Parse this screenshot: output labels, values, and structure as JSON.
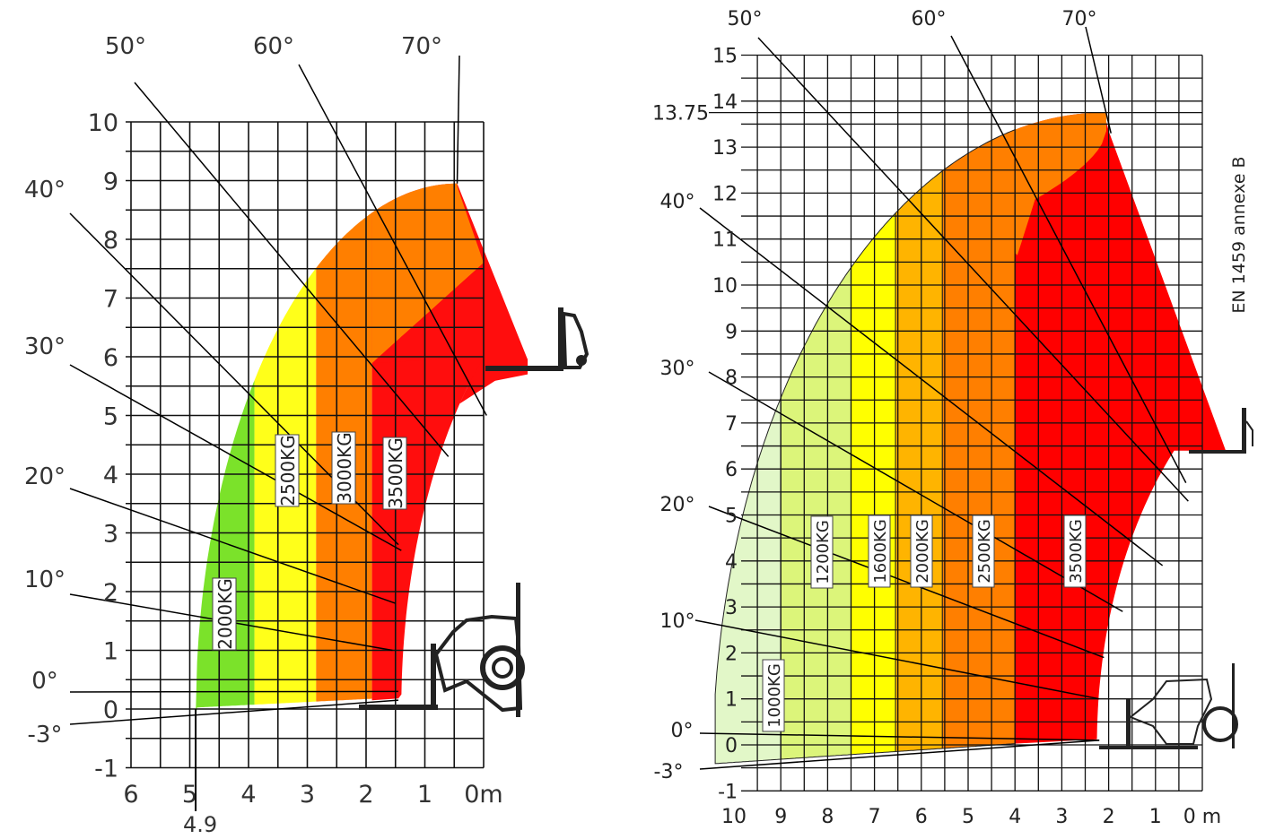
{
  "chart_data": [
    {
      "type": "area",
      "title": "",
      "xlabel": "",
      "ylabel": "",
      "x_unit_label": "0m",
      "x_ticks": [
        "6",
        "5",
        "4",
        "3",
        "2",
        "1",
        "0m"
      ],
      "y_ticks": [
        "-1",
        "0",
        "1",
        "2",
        "3",
        "4",
        "5",
        "6",
        "7",
        "8",
        "9",
        "10"
      ],
      "xlim": [
        6,
        0
      ],
      "ylim": [
        -1,
        10
      ],
      "grid": true,
      "max_reach": 4.9,
      "max_reach_label": "4.9",
      "max_height": 8.95,
      "angles": [
        {
          "label": "70°",
          "deg": 70
        },
        {
          "label": "60°",
          "deg": 60
        },
        {
          "label": "50°",
          "deg": 50
        },
        {
          "label": "40°",
          "deg": 40
        },
        {
          "label": "30°",
          "deg": 30
        },
        {
          "label": "20°",
          "deg": 20
        },
        {
          "label": "10°",
          "deg": 10
        },
        {
          "label": "0°",
          "deg": 0
        },
        {
          "label": "-3°",
          "deg": -3
        }
      ],
      "series": [
        {
          "name": "2000KG",
          "from_x": 4.9,
          "to_x": 3.9,
          "color": "#7be22a"
        },
        {
          "name": "2500KG",
          "from_x": 3.9,
          "to_x": 2.85,
          "color": "#ffff1a"
        },
        {
          "name": "3000KG",
          "from_x": 2.85,
          "to_x": 1.9,
          "color": "#ff7f00"
        },
        {
          "name": "3500KG",
          "from_x": 1.9,
          "to_x": 0,
          "color": "#ff0d0d"
        }
      ],
      "zone_labels": [
        "2000KG",
        "2500KG",
        "3000KG",
        "3500KG"
      ]
    },
    {
      "type": "area",
      "title": "",
      "xlabel": "",
      "ylabel": "",
      "side_note": "EN 1459 annexe B",
      "x_ticks": [
        "10",
        "9",
        "8",
        "7",
        "6",
        "5",
        "4",
        "3",
        "2",
        "1",
        "0 m"
      ],
      "y_ticks": [
        "-1",
        "0",
        "1",
        "2",
        "3",
        "4",
        "5",
        "6",
        "7",
        "8",
        "9",
        "10",
        "11",
        "12",
        "13",
        "14",
        "15"
      ],
      "xlim": [
        10,
        0
      ],
      "ylim": [
        -1,
        15
      ],
      "grid": true,
      "max_height": 13.75,
      "max_height_label": "13.75",
      "max_reach": 10.4,
      "angles": [
        {
          "label": "70°",
          "deg": 70
        },
        {
          "label": "60°",
          "deg": 60
        },
        {
          "label": "50°",
          "deg": 50
        },
        {
          "label": "40°",
          "deg": 40
        },
        {
          "label": "30°",
          "deg": 30
        },
        {
          "label": "20°",
          "deg": 20
        },
        {
          "label": "10°",
          "deg": 10
        },
        {
          "label": "0°",
          "deg": 0
        },
        {
          "label": "-3°",
          "deg": -3
        }
      ],
      "series": [
        {
          "name": "1000KG",
          "from_x": 10.4,
          "to_x": 9.0,
          "color": "#e2f7c8"
        },
        {
          "name": "1200KG",
          "from_x": 9.0,
          "to_x": 7.5,
          "color": "#dcf57a"
        },
        {
          "name": "1600KG",
          "from_x": 7.5,
          "to_x": 6.55,
          "color": "#ffff00"
        },
        {
          "name": "2000KG",
          "from_x": 6.55,
          "to_x": 5.55,
          "color": "#ffb400"
        },
        {
          "name": "2500KG",
          "from_x": 5.55,
          "to_x": 4.0,
          "color": "#ff7f00"
        },
        {
          "name": "3500KG",
          "from_x": 4.0,
          "to_x": 0,
          "color": "#ff0000"
        }
      ],
      "zone_labels": [
        "1000KG",
        "1200KG",
        "1600KG",
        "2000KG",
        "2500KG",
        "3500KG"
      ]
    }
  ]
}
